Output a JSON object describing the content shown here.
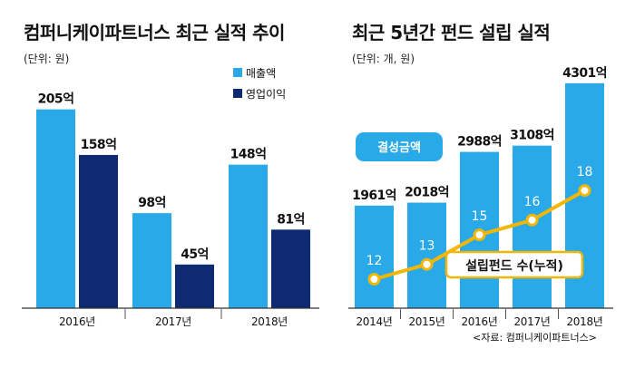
{
  "chart_data": [
    {
      "type": "bar",
      "title": "컴퍼니케이파트너스 최근 실적 추이",
      "unit": "(단위: 원)",
      "categories": [
        "2016년",
        "2017년",
        "2018년"
      ],
      "series": [
        {
          "name": "매출액",
          "values": [
            205,
            98,
            148
          ],
          "labels": [
            "205억",
            "98억",
            "148억"
          ],
          "color": "#29a9e8"
        },
        {
          "name": "영업이익",
          "values": [
            158,
            45,
            81
          ],
          "labels": [
            "158억",
            "45억",
            "81억"
          ],
          "color": "#0d2a73"
        }
      ],
      "legend_position": "top-right",
      "grid": false
    },
    {
      "type": "bar",
      "title": "최근 5년간 펀드 설립 실적",
      "unit": "(단위: 개, 원)",
      "categories": [
        "2014년",
        "2015년",
        "2016년",
        "2017년",
        "2018년"
      ],
      "series": [
        {
          "name": "결성금액",
          "values": [
            1961,
            2018,
            2988,
            3108,
            4301
          ],
          "labels": [
            "1961억",
            "2018억",
            "2988억",
            "3108억",
            "4301억"
          ],
          "color": "#29a9e8"
        },
        {
          "name": "설립펀드 수(누적)",
          "type": "line",
          "values": [
            12,
            13,
            15,
            16,
            18
          ],
          "color": "#f2b705"
        }
      ],
      "grid": false
    }
  ],
  "source": "<자료: 컴퍼니케이파트너스>"
}
